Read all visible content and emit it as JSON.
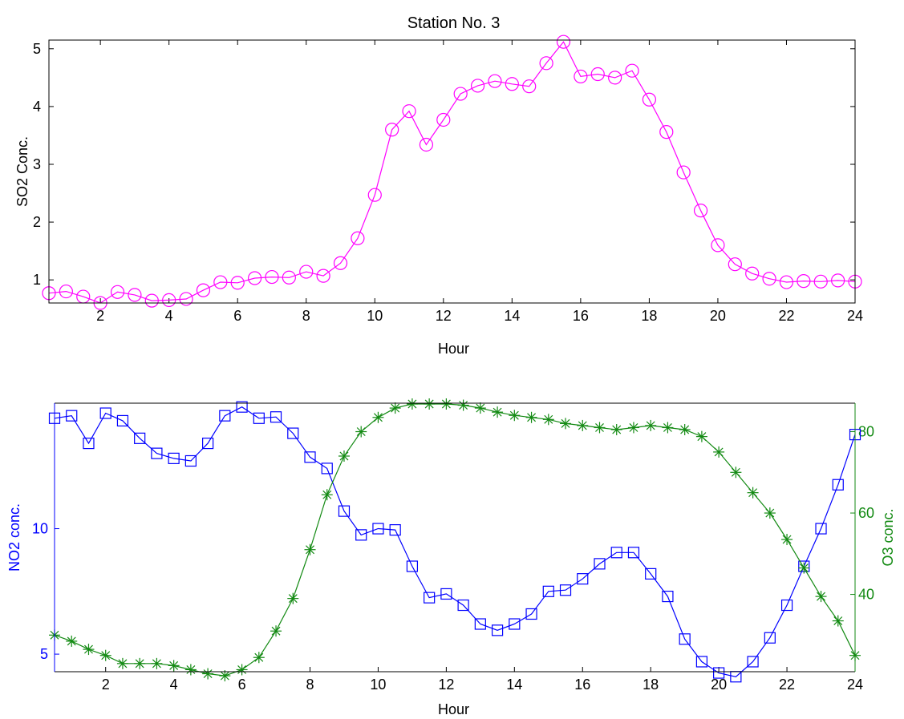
{
  "colors": {
    "so2": "#ff00ff",
    "no2": "#0000ff",
    "o3": "#138a13",
    "axes": "#000000",
    "background": "#ffffff"
  },
  "chart_data": [
    {
      "type": "line",
      "title": "Station No. 3",
      "xlabel": "Hour",
      "ylabel": "SO2 Conc.",
      "xlim": [
        0.5,
        24
      ],
      "ylim": [
        0.6,
        5.15
      ],
      "xticks": [
        2,
        4,
        6,
        8,
        10,
        12,
        14,
        16,
        18,
        20,
        22,
        24
      ],
      "yticks": [
        1,
        2,
        3,
        4,
        5
      ],
      "grid": false,
      "series": [
        {
          "marker": "circle",
          "color": "#ff00ff",
          "x": [
            0.5,
            1,
            1.5,
            2,
            2.5,
            3,
            3.5,
            4,
            4.5,
            5,
            5.5,
            6,
            6.5,
            7,
            7.5,
            8,
            8.5,
            9,
            9.5,
            10,
            10.5,
            11,
            11.5,
            12,
            12.5,
            13,
            13.5,
            14,
            14.5,
            15,
            15.5,
            16,
            16.5,
            17,
            17.5,
            18,
            18.5,
            19,
            19.5,
            20,
            20.5,
            21,
            21.5,
            22,
            22.5,
            23,
            23.5,
            24
          ],
          "values": [
            0.77,
            0.8,
            0.71,
            0.6,
            0.79,
            0.74,
            0.64,
            0.65,
            0.67,
            0.82,
            0.96,
            0.95,
            1.03,
            1.05,
            1.04,
            1.14,
            1.07,
            1.29,
            1.72,
            2.47,
            3.6,
            3.92,
            3.34,
            3.77,
            4.22,
            4.36,
            4.44,
            4.39,
            4.35,
            4.75,
            5.12,
            4.52,
            4.56,
            4.5,
            4.62,
            4.12,
            3.56,
            2.86,
            2.2,
            1.6,
            1.27,
            1.11,
            1.02,
            0.96,
            0.98,
            0.97,
            0.99,
            0.97
          ]
        }
      ]
    },
    {
      "type": "line",
      "xlabel": "Hour",
      "ylabel": "NO2 conc.",
      "y2label": "O3 conc.",
      "xlim": [
        0.5,
        24
      ],
      "ylim": [
        4.3,
        15.0
      ],
      "y2lim": [
        21,
        87
      ],
      "xticks": [
        2,
        4,
        6,
        8,
        10,
        12,
        14,
        16,
        18,
        20,
        22,
        24
      ],
      "yticks": [
        5,
        10
      ],
      "y2ticks": [
        40,
        60,
        80
      ],
      "grid": false,
      "series": [
        {
          "axis": "left",
          "marker": "square",
          "color": "#0000ff",
          "x": [
            0.5,
            1,
            1.5,
            2,
            2.5,
            3,
            3.5,
            4,
            4.5,
            5,
            5.5,
            6,
            6.5,
            7,
            7.5,
            8,
            8.5,
            9,
            9.5,
            10,
            10.5,
            11,
            11.5,
            12,
            12.5,
            13,
            13.5,
            14,
            14.5,
            15,
            15.5,
            16,
            16.5,
            17,
            17.5,
            18,
            18.5,
            19,
            19.5,
            20,
            20.5,
            21,
            21.5,
            22,
            22.5,
            23,
            23.5,
            24
          ],
          "values": [
            14.4,
            14.5,
            13.4,
            14.6,
            14.3,
            13.6,
            13.0,
            12.8,
            12.7,
            13.4,
            14.5,
            14.85,
            14.4,
            14.45,
            13.8,
            12.85,
            12.4,
            10.7,
            9.75,
            10.0,
            9.95,
            8.5,
            7.25,
            7.4,
            6.95,
            6.2,
            5.95,
            6.2,
            6.6,
            7.5,
            7.55,
            8.0,
            8.6,
            9.05,
            9.05,
            8.2,
            7.3,
            5.6,
            4.7,
            4.25,
            4.1,
            4.7,
            5.65,
            6.95,
            8.5,
            10.0,
            11.75,
            13.75
          ]
        },
        {
          "axis": "right",
          "marker": "asterisk",
          "color": "#138a13",
          "x": [
            0.5,
            1,
            1.5,
            2,
            2.5,
            3,
            3.5,
            4,
            4.5,
            5,
            5.5,
            6,
            6.5,
            7,
            7.5,
            8,
            8.5,
            9,
            9.5,
            10,
            10.5,
            11,
            11.5,
            12,
            12.5,
            13,
            13.5,
            14,
            14.5,
            15,
            15.5,
            16,
            16.5,
            17,
            17.5,
            18,
            18.5,
            19,
            19.5,
            20,
            20.5,
            21,
            21.5,
            22,
            22.5,
            23,
            23.5,
            24
          ],
          "values": [
            30.0,
            28.5,
            26.5,
            25.0,
            23.0,
            23.0,
            23.0,
            22.5,
            21.5,
            20.5,
            20.0,
            21.5,
            24.5,
            31.0,
            39.0,
            51.0,
            64.5,
            74.0,
            80.0,
            83.5,
            85.8,
            86.8,
            86.8,
            86.8,
            86.5,
            85.8,
            84.8,
            84.0,
            83.5,
            83.0,
            82.0,
            81.5,
            81.0,
            80.5,
            81.0,
            81.5,
            81.0,
            80.5,
            78.8,
            75.0,
            70.0,
            65.0,
            60.0,
            53.5,
            46.5,
            39.5,
            33.5,
            25.0
          ]
        }
      ]
    }
  ]
}
